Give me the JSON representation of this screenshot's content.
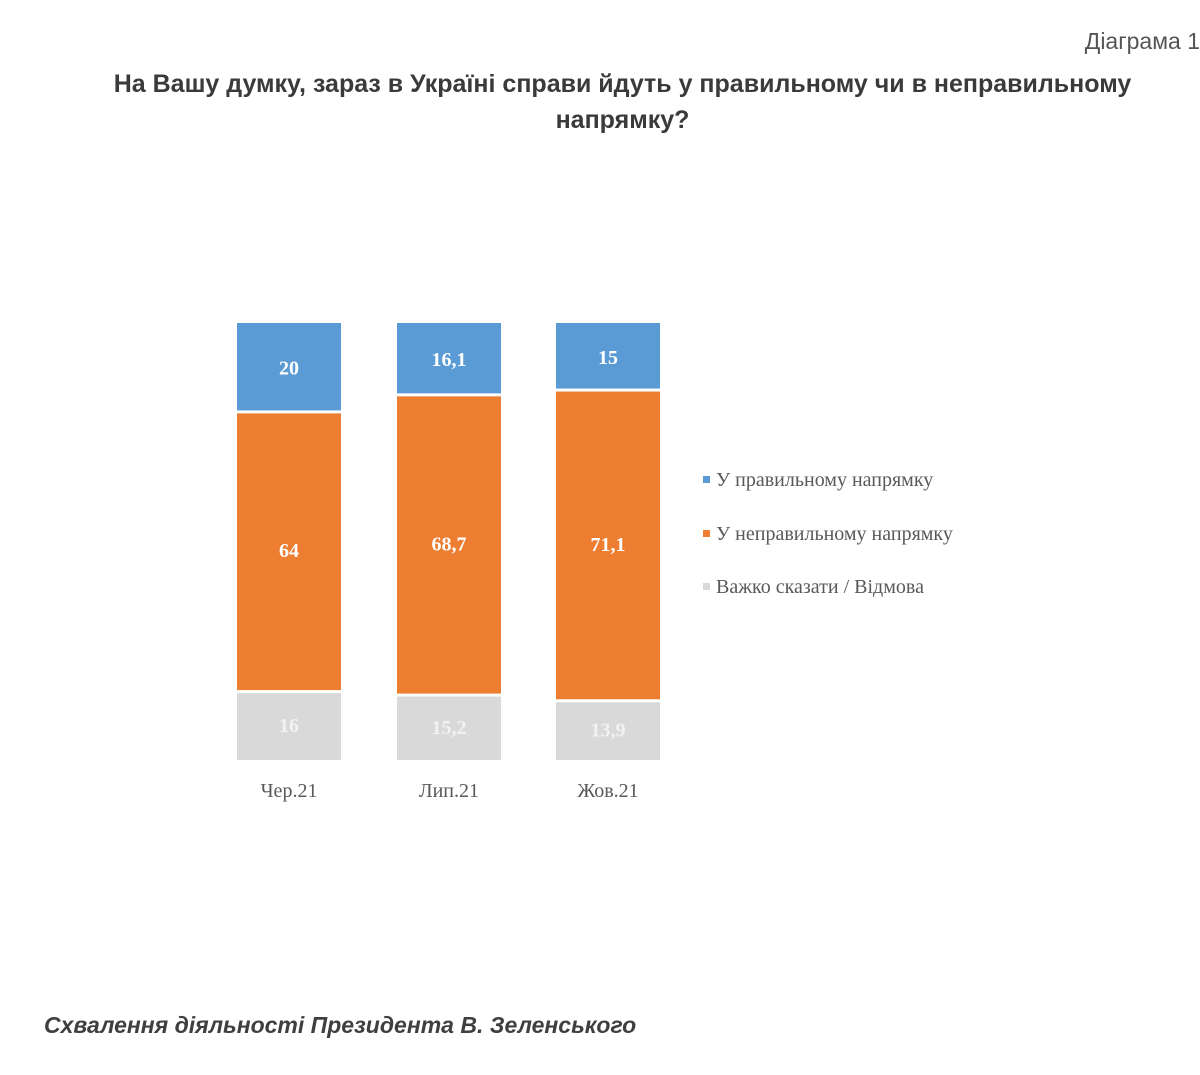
{
  "header": {
    "diagram_label": "Діаграма 1",
    "title": "На Вашу думку, зараз в Україні справи йдуть у правильному чи в неправильному напрямку?"
  },
  "chart_data": {
    "type": "bar",
    "stacked": true,
    "title": "На Вашу думку, зараз в Україні справи йдуть у правильному чи в неправильному напрямку?",
    "categories": [
      "Чер.21",
      "Лип.21",
      "Жов.21"
    ],
    "series": [
      {
        "name": "Важко сказати / Відмова",
        "color": "#d9d9d9",
        "label_color": "#f2f2f2",
        "values": [
          16,
          15.2,
          13.9
        ],
        "labels": [
          "16",
          "15,2",
          "13,9"
        ]
      },
      {
        "name": "У неправильному напрямку",
        "color": "#ed7d31",
        "label_color": "#ffffff",
        "values": [
          64,
          68.7,
          71.1
        ],
        "labels": [
          "64",
          "68,7",
          "71,1"
        ]
      },
      {
        "name": "У правильному напрямку",
        "color": "#5b9bd5",
        "label_color": "#ffffff",
        "values": [
          20,
          16.1,
          15
        ],
        "labels": [
          "20",
          "16,1",
          "15"
        ]
      }
    ],
    "legend": [
      {
        "name": "У правильному напрямку",
        "color": "#5b9bd5"
      },
      {
        "name": "У неправильному напрямку",
        "color": "#ed7d31"
      },
      {
        "name": "Важко сказати / Відмова",
        "color": "#d9d9d9"
      }
    ],
    "ylim": [
      0,
      100
    ],
    "legend_position": "right",
    "xlabel": "",
    "ylabel": ""
  },
  "footer": {
    "next_section_title": "Схвалення діяльності Президента В. Зеленського"
  }
}
